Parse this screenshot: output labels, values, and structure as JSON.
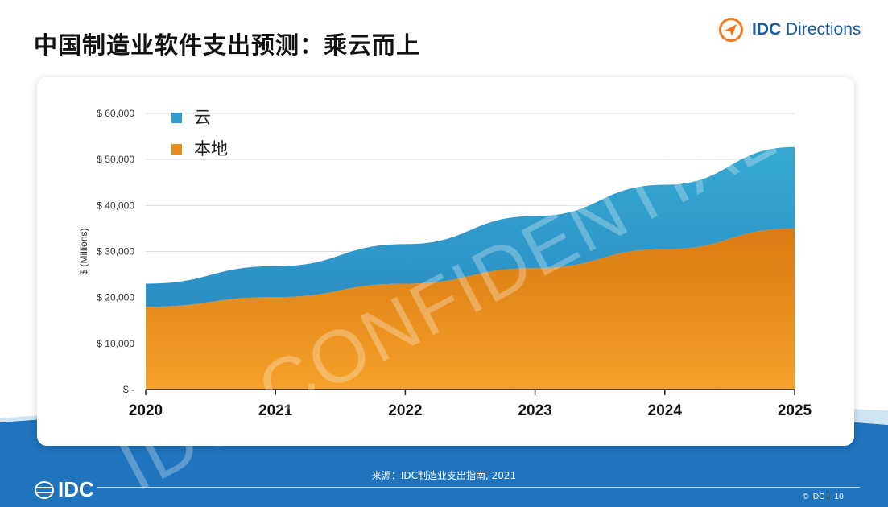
{
  "page": {
    "title": "中国制造业软件支出预测：乘云而上",
    "brand_bold": "IDC",
    "brand_rest": " Directions",
    "source": "来源：IDC制造业支出指南, 2021",
    "footer_logo": "IDC",
    "copyright": "© IDC |",
    "page_number": "10",
    "watermark": "IDC CONFIDENTIAL"
  },
  "colors": {
    "cloud": "#2e9fcc",
    "onprem": "#ea8a1a",
    "brand_accent": "#f07a22",
    "footer_blue": "#1f74bd"
  },
  "chart_data": {
    "type": "area",
    "stacked": true,
    "x": [
      "2020",
      "2021",
      "2022",
      "2023",
      "2024",
      "2025"
    ],
    "series": [
      {
        "name": "本地",
        "values": [
          18000,
          20100,
          23000,
          26400,
          30500,
          35000
        ]
      },
      {
        "name": "云",
        "values": [
          5000,
          6700,
          8600,
          11300,
          14000,
          17700
        ]
      }
    ],
    "yticks": [
      {
        "value": 0,
        "label": "$ -"
      },
      {
        "value": 10000,
        "label": "$ 10,000"
      },
      {
        "value": 20000,
        "label": "$ 20,000"
      },
      {
        "value": 30000,
        "label": "$ 30,000"
      },
      {
        "value": 40000,
        "label": "$ 40,000"
      },
      {
        "value": 50000,
        "label": "$ 50,000"
      },
      {
        "value": 60000,
        "label": "$ 60,000"
      }
    ],
    "ylim": [
      0,
      60000
    ],
    "ylabel": "$ (Millions)",
    "xlabel": "",
    "legend_order": [
      "云",
      "本地"
    ],
    "legend_position": "top-left",
    "grid": true
  }
}
